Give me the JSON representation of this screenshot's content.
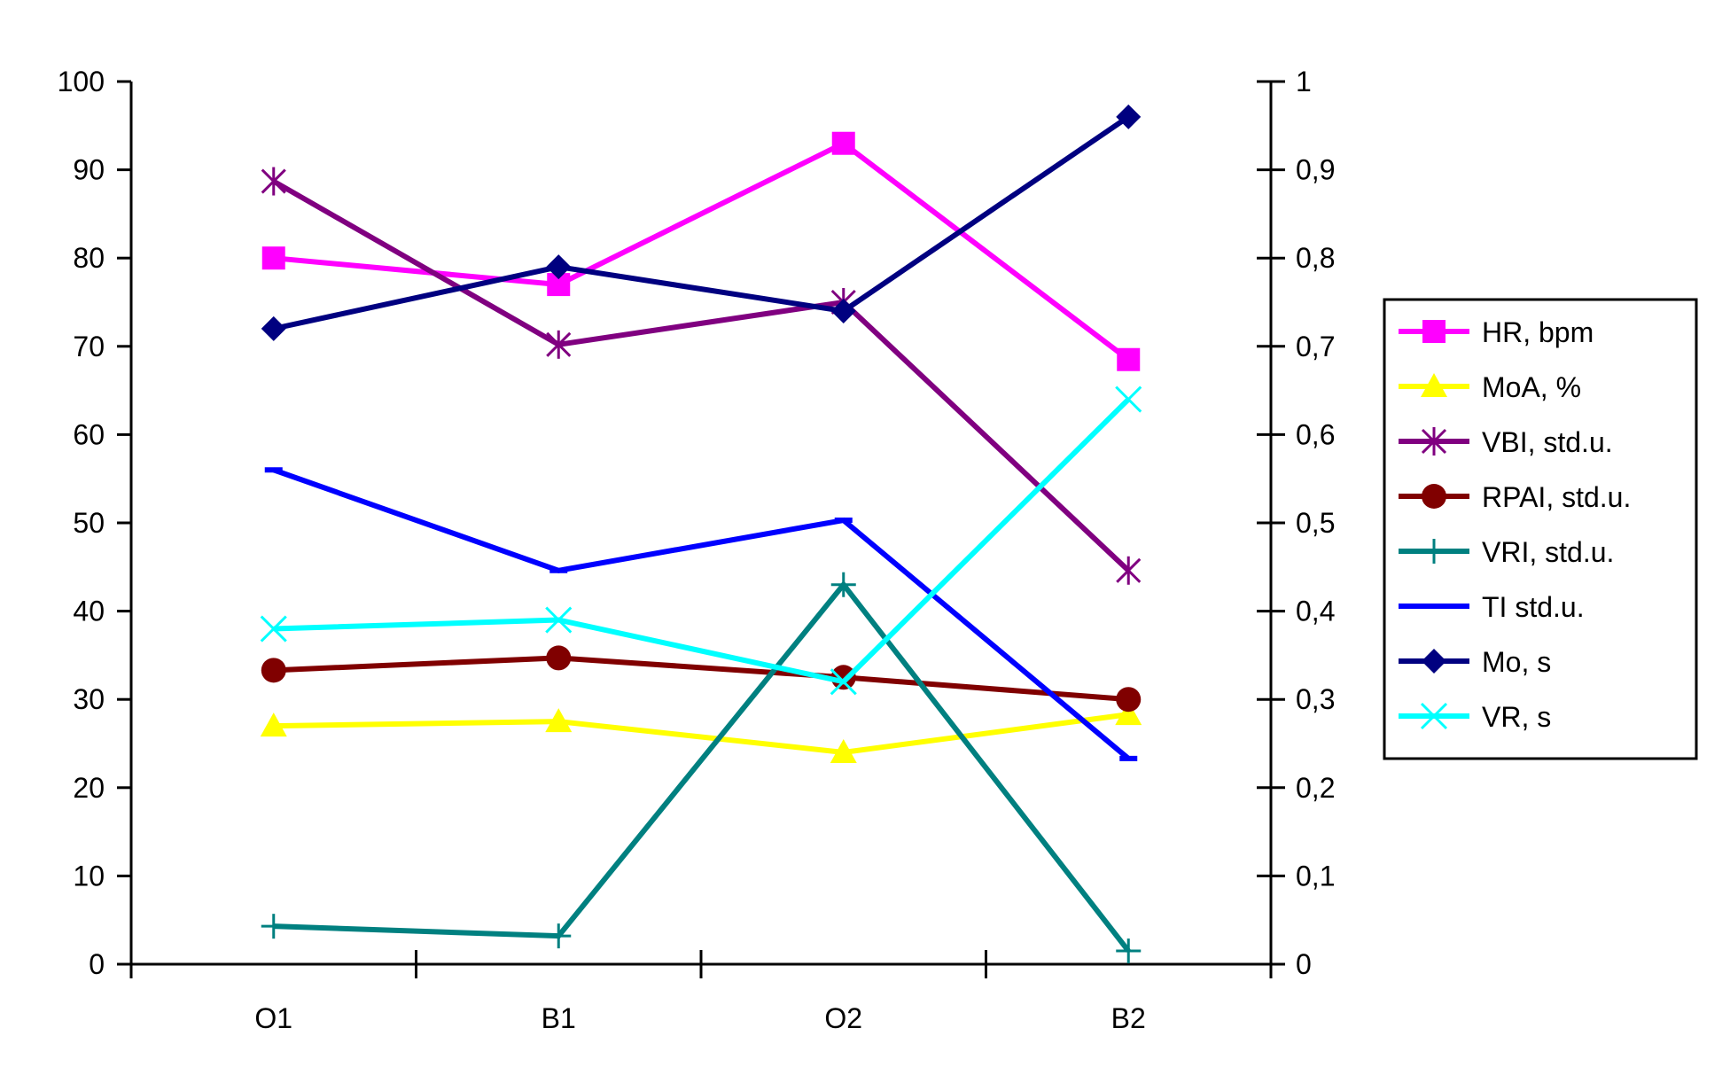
{
  "chart_data": {
    "type": "line",
    "title": "",
    "categories": [
      "O1",
      "B1",
      "O2",
      "B2"
    ],
    "y_left": {
      "min": 0,
      "max": 100,
      "step": 10,
      "ticks": [
        "0",
        "10",
        "20",
        "30",
        "40",
        "50",
        "60",
        "70",
        "80",
        "90",
        "100"
      ]
    },
    "y_right": {
      "min": 0,
      "max": 1,
      "step": 0.1,
      "ticks": [
        "0",
        "0,1",
        "0,2",
        "0,3",
        "0,4",
        "0,5",
        "0,6",
        "0,7",
        "0,8",
        "0,9",
        "1"
      ]
    },
    "legend_position": "right",
    "series": [
      {
        "name": "HR, bpm",
        "axis": "left",
        "color": "#FF00FF",
        "marker": "square",
        "values": [
          80,
          77,
          93,
          68.5
        ]
      },
      {
        "name": "MoA, %",
        "axis": "left",
        "color": "#FFFF00",
        "marker": "triangle",
        "values": [
          27,
          27.5,
          24,
          28.3
        ]
      },
      {
        "name": "VBI, std.u.",
        "axis": "left",
        "color": "#800080",
        "marker": "asterisk",
        "values": [
          88.7,
          70.2,
          75,
          44.6
        ]
      },
      {
        "name": "RPAI, std.u.",
        "axis": "left",
        "color": "#800000",
        "marker": "circle",
        "values": [
          33.3,
          34.7,
          32.5,
          30
        ]
      },
      {
        "name": "VRI, std.u.",
        "axis": "left",
        "color": "#008080",
        "marker": "plus",
        "values": [
          4.3,
          3.2,
          43,
          1.5
        ]
      },
      {
        "name": "TI std.u.",
        "axis": "left",
        "color": "#0000FF",
        "marker": "dash",
        "values": [
          56,
          44.6,
          50.3,
          23.3
        ]
      },
      {
        "name": "Mo, s",
        "axis": "right",
        "color": "#000080",
        "marker": "diamond",
        "values": [
          0.72,
          0.79,
          0.74,
          0.96
        ]
      },
      {
        "name": "VR, s",
        "axis": "right",
        "color": "#00FFFF",
        "marker": "x",
        "values": [
          0.38,
          0.39,
          0.32,
          0.64
        ]
      }
    ]
  }
}
